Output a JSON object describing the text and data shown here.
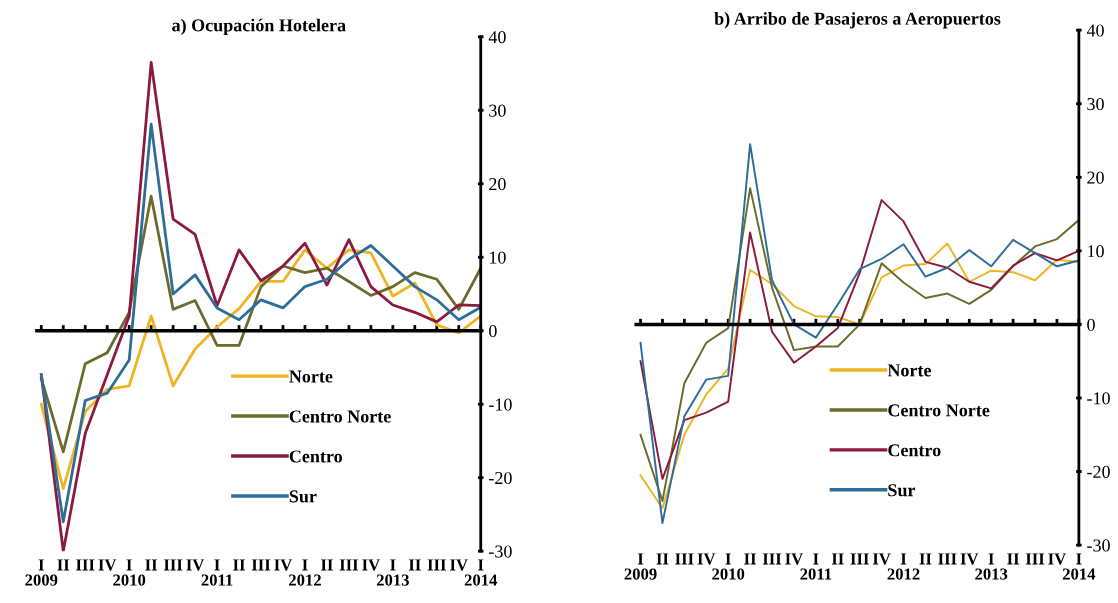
{
  "chart_data": [
    {
      "type": "line",
      "title": "a) Ocupación Hotelera",
      "categories": [
        "I\n2009",
        "II",
        "III",
        "IV",
        "I\n2010",
        "II",
        "III",
        "IV",
        "I\n2011",
        "II",
        "III",
        "IV",
        "I\n2012",
        "II",
        "III",
        "IV",
        "I\n2013",
        "II",
        "III",
        "IV",
        "I\n2014"
      ],
      "series": [
        {
          "name": "Norte",
          "color": "#f0b323",
          "values": [
            -10,
            -21.5,
            -11,
            -8,
            -7.5,
            2,
            -7.5,
            -2.5,
            0.5,
            3,
            6.7,
            6.7,
            11,
            8.5,
            11,
            10.6,
            4.7,
            6.5,
            0.8,
            -0.3,
            2
          ]
        },
        {
          "name": "Centro Norte",
          "color": "#6b6b2a",
          "values": [
            -6.5,
            -16.5,
            -4.5,
            -3,
            2.5,
            18.3,
            2.9,
            4.1,
            -2,
            -2,
            6,
            8.8,
            7.9,
            8.5,
            6.7,
            4.8,
            6,
            7.9,
            7,
            2.9,
            8.5
          ]
        },
        {
          "name": "Centro",
          "color": "#8b1a3c",
          "values": [
            -6,
            -30,
            -14,
            -6,
            2,
            36.5,
            15.2,
            13.1,
            3.4,
            11,
            6.8,
            8.8,
            11.9,
            6.2,
            12.4,
            6,
            3.5,
            2.5,
            1.2,
            3.5,
            3.4
          ]
        },
        {
          "name": "Sur",
          "color": "#2e6d99",
          "values": [
            -6,
            -26,
            -9.5,
            -8.5,
            -4,
            28.1,
            5,
            7.6,
            3.1,
            1.5,
            4.2,
            3.1,
            6,
            7,
            9.7,
            11.6,
            8.8,
            6,
            4.2,
            1.5,
            3.2
          ]
        }
      ],
      "ylim": [
        -30,
        40
      ],
      "yticks": [
        -30,
        -20,
        -10,
        0,
        10,
        20,
        30,
        40
      ],
      "legend": "bottom"
    },
    {
      "type": "line",
      "title": "b) Arribo de Pasajeros a Aeropuertos",
      "categories": [
        "I\n2009",
        "II",
        "III",
        "IV",
        "I\n2010",
        "II",
        "III",
        "IV",
        "I\n2011",
        "II",
        "III",
        "IV",
        "I\n2012",
        "II",
        "III",
        "IV",
        "I\n2013",
        "II",
        "III",
        "IV",
        "I\n2014"
      ],
      "series": [
        {
          "name": "Norte",
          "color": "#f0b323",
          "values": [
            -20.5,
            -25,
            -15,
            -9.5,
            -6,
            7.4,
            5.5,
            2.5,
            1.1,
            1,
            0,
            6.4,
            8,
            8.2,
            11,
            5.8,
            7.3,
            7.1,
            6,
            8.8,
            8.5
          ]
        },
        {
          "name": "Centro Norte",
          "color": "#6b6b2a",
          "values": [
            -15,
            -24,
            -8,
            -2.5,
            -0.5,
            18.5,
            5,
            -3.5,
            -3,
            -3,
            0,
            8.3,
            5.7,
            3.6,
            4.2,
            2.8,
            4.7,
            7.9,
            10.6,
            11.6,
            14.2
          ]
        },
        {
          "name": "Centro",
          "color": "#8b1a3c",
          "values": [
            -5,
            -21,
            -13,
            -12,
            -10.5,
            12.5,
            -1,
            -5.2,
            -3,
            -0.5,
            7,
            16.9,
            14,
            8.5,
            7.7,
            5.8,
            4.9,
            8,
            9.7,
            8.7,
            10
          ]
        },
        {
          "name": "Sur",
          "color": "#2e6d99",
          "values": [
            -2.5,
            -27,
            -12.5,
            -7.5,
            -7,
            24.5,
            6,
            0,
            -1.8,
            2.7,
            7.5,
            8.9,
            10.9,
            6.5,
            7.7,
            10.1,
            7.9,
            11.5,
            9.7,
            7.9,
            8.7
          ]
        }
      ],
      "ylim": [
        -30,
        40
      ],
      "yticks": [
        -30,
        -20,
        -10,
        0,
        10,
        20,
        30,
        40
      ],
      "legend": "bottom"
    }
  ]
}
